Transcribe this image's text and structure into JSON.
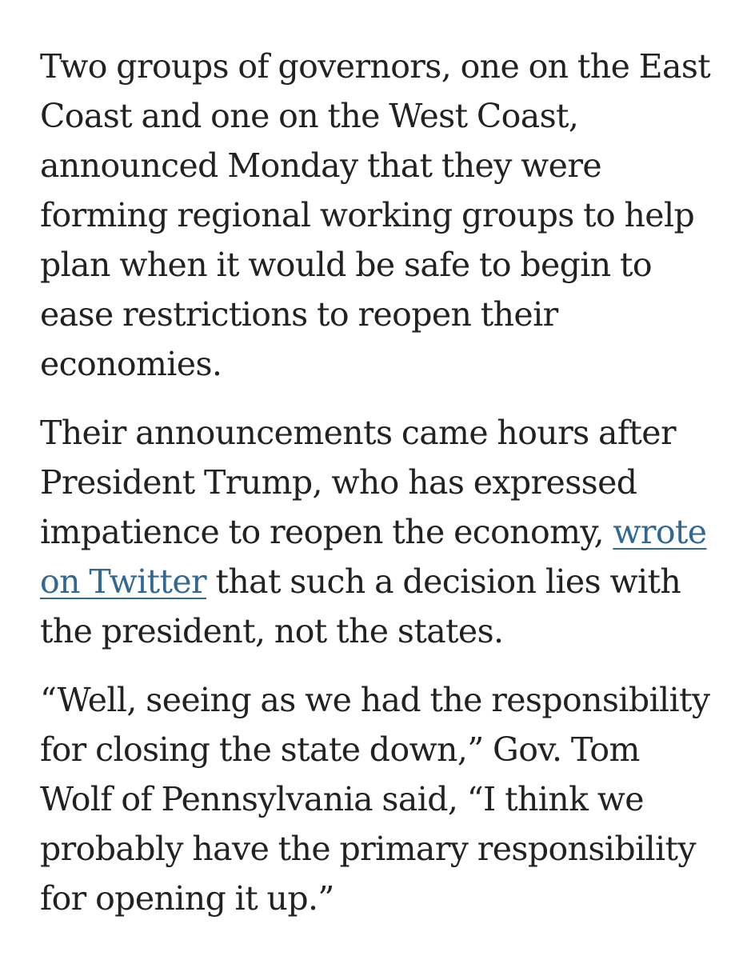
{
  "article": {
    "paragraphs": [
      {
        "lines": [
          "Two groups of governors, one on the East",
          "Coast and one on the West Coast,",
          "announced Monday that they were",
          "forming regional working groups to help",
          "plan when it would be safe to begin to",
          "ease restrictions to reopen their",
          "economies."
        ]
      },
      {
        "line1": "Their announcements came hours after",
        "line2": "President Trump, who has expressed",
        "line3_before_link": "impatience to reopen the economy, ",
        "link_part1": "wrote",
        "link_part2": "on Twitter",
        "line4_after_link": " that such a decision lies with",
        "line5": "the president, not the states."
      },
      {
        "lines": [
          "“Well, seeing as we had the responsibility",
          "for closing the state down,” Gov. Tom",
          "Wolf of Pennsylvania said, “I think we",
          "probably have the primary responsibility",
          "for opening it up.”"
        ]
      }
    ]
  }
}
